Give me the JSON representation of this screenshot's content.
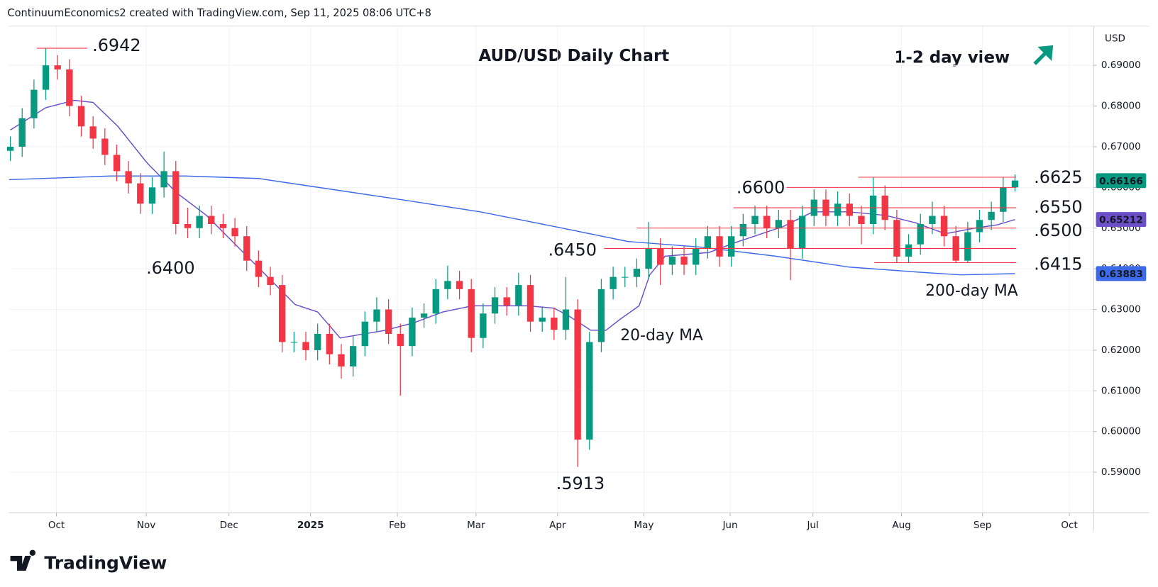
{
  "header": {
    "text": "ContinuumEconomics2 created with TradingView.com, Sep 11, 2025 08:06 UTC+8"
  },
  "footer": {
    "brand": "TradingView"
  },
  "chart_data": {
    "type": "candlestick",
    "title": "AUD/USD Daily Chart",
    "subtitle": "1-2 day view",
    "y_axis_label": "USD",
    "up_color": "#089981",
    "down_color": "#f23645",
    "open": [
      0.669,
      0.67,
      0.677,
      0.684,
      0.69,
      0.689,
      0.68,
      0.675,
      0.672,
      0.668,
      0.664,
      0.661,
      0.656,
      0.66,
      0.664,
      0.651,
      0.65,
      0.653,
      0.651,
      0.65,
      0.648,
      0.642,
      0.638,
      0.636,
      0.622,
      0.622,
      0.62,
      0.624,
      0.619,
      0.616,
      0.621,
      0.627,
      0.63,
      0.624,
      0.621,
      0.628,
      0.629,
      0.635,
      0.637,
      0.635,
      0.623,
      0.629,
      0.633,
      0.631,
      0.636,
      0.627,
      0.628,
      0.625,
      0.63,
      0.598,
      0.622,
      0.635,
      0.638,
      0.638,
      0.64,
      0.645,
      0.641,
      0.643,
      0.641,
      0.645,
      0.648,
      0.643,
      0.648,
      0.651,
      0.653,
      0.65,
      0.652,
      0.645,
      0.653,
      0.657,
      0.653,
      0.656,
      0.653,
      0.651,
      0.658,
      0.652,
      0.643,
      0.646,
      0.651,
      0.653,
      0.648,
      0.642,
      0.649,
      0.652,
      0.654,
      0.66
    ],
    "high": [
      0.6725,
      0.6795,
      0.6865,
      0.6942,
      0.6925,
      0.6915,
      0.6825,
      0.6775,
      0.6745,
      0.6705,
      0.6665,
      0.6635,
      0.6625,
      0.6688,
      0.6665,
      0.655,
      0.6555,
      0.6555,
      0.6535,
      0.6525,
      0.6505,
      0.6445,
      0.6405,
      0.6385,
      0.6245,
      0.6245,
      0.6265,
      0.6265,
      0.6215,
      0.6235,
      0.6295,
      0.633,
      0.6325,
      0.6265,
      0.6305,
      0.6315,
      0.6375,
      0.6408,
      0.6395,
      0.6375,
      0.6315,
      0.6355,
      0.6355,
      0.639,
      0.6385,
      0.6305,
      0.6305,
      0.638,
      0.6325,
      0.6245,
      0.6375,
      0.6405,
      0.6405,
      0.6425,
      0.6515,
      0.6475,
      0.6455,
      0.6455,
      0.6475,
      0.6505,
      0.6505,
      0.6505,
      0.6535,
      0.6555,
      0.6555,
      0.6545,
      0.6545,
      0.6555,
      0.6595,
      0.6595,
      0.659,
      0.6585,
      0.6555,
      0.6625,
      0.6605,
      0.6545,
      0.6485,
      0.6535,
      0.6565,
      0.6555,
      0.6505,
      0.6515,
      0.6545,
      0.6565,
      0.6625,
      0.6632
    ],
    "low": [
      0.6665,
      0.6675,
      0.6745,
      0.6815,
      0.6865,
      0.6775,
      0.6725,
      0.6695,
      0.6655,
      0.6615,
      0.6585,
      0.6535,
      0.6535,
      0.6575,
      0.6485,
      0.6475,
      0.6475,
      0.6485,
      0.6475,
      0.6455,
      0.6395,
      0.6355,
      0.6335,
      0.6195,
      0.6195,
      0.6175,
      0.6175,
      0.6165,
      0.613,
      0.6135,
      0.6185,
      0.6245,
      0.6215,
      0.6088,
      0.6185,
      0.6255,
      0.6265,
      0.6325,
      0.6325,
      0.6195,
      0.6205,
      0.6265,
      0.6285,
      0.6285,
      0.6245,
      0.6245,
      0.6225,
      0.6225,
      0.5913,
      0.5955,
      0.6195,
      0.6325,
      0.6355,
      0.6355,
      0.6375,
      0.636,
      0.6385,
      0.6385,
      0.6385,
      0.6425,
      0.6405,
      0.6405,
      0.6455,
      0.6485,
      0.6475,
      0.6475,
      0.6372,
      0.6425,
      0.6505,
      0.6505,
      0.6505,
      0.6505,
      0.646,
      0.6485,
      0.6495,
      0.6415,
      0.6415,
      0.6435,
      0.6485,
      0.6455,
      0.6415,
      0.6415,
      0.6465,
      0.6495,
      0.6515,
      0.659
    ],
    "close": [
      0.67,
      0.677,
      0.684,
      0.69,
      0.689,
      0.68,
      0.675,
      0.672,
      0.668,
      0.664,
      0.661,
      0.656,
      0.66,
      0.664,
      0.651,
      0.65,
      0.653,
      0.651,
      0.65,
      0.648,
      0.642,
      0.638,
      0.636,
      0.622,
      0.622,
      0.62,
      0.624,
      0.619,
      0.616,
      0.621,
      0.627,
      0.63,
      0.624,
      0.621,
      0.628,
      0.629,
      0.635,
      0.637,
      0.635,
      0.623,
      0.629,
      0.633,
      0.631,
      0.636,
      0.627,
      0.628,
      0.625,
      0.63,
      0.598,
      0.622,
      0.635,
      0.638,
      0.638,
      0.64,
      0.645,
      0.641,
      0.643,
      0.641,
      0.645,
      0.648,
      0.643,
      0.648,
      0.651,
      0.653,
      0.65,
      0.652,
      0.645,
      0.653,
      0.657,
      0.653,
      0.656,
      0.653,
      0.651,
      0.658,
      0.652,
      0.643,
      0.646,
      0.651,
      0.653,
      0.648,
      0.642,
      0.649,
      0.652,
      0.654,
      0.66,
      0.6617
    ],
    "series": [
      {
        "name": "20-day MA",
        "color": "#6c4fc9",
        "x": [
          0,
          3,
          5.4,
          7,
          9.1,
          11.6,
          14.1,
          16.6,
          19.1,
          21.6,
          24.1,
          26,
          27.9,
          29.7,
          31.6,
          34.1,
          36.6,
          39.1,
          43.8,
          46,
          47.2,
          49.1,
          50.4,
          51.6,
          53.2,
          54.1,
          55.4,
          59.1,
          61.6,
          65.4,
          67.9,
          71,
          74.1,
          76.6,
          79.1,
          81.6,
          83.5,
          85
        ],
        "values": [
          0.6741,
          0.6796,
          0.6814,
          0.6809,
          0.675,
          0.6659,
          0.6586,
          0.6531,
          0.6458,
          0.6385,
          0.6312,
          0.6294,
          0.623,
          0.6239,
          0.6248,
          0.6267,
          0.6294,
          0.6309,
          0.6309,
          0.6303,
          0.6285,
          0.6249,
          0.6249,
          0.6276,
          0.6309,
          0.6385,
          0.6431,
          0.644,
          0.6467,
          0.6504,
          0.654,
          0.654,
          0.6531,
          0.6513,
          0.6486,
          0.65,
          0.6508,
          0.6521
        ]
      },
      {
        "name": "200-day MA",
        "color": "#3d6ae8",
        "x": [
          -0.1,
          8.5,
          14.75,
          21,
          27.25,
          33.5,
          39.75,
          46,
          52.25,
          58.5,
          64.75,
          71,
          77.25,
          80.4,
          85
        ],
        "values": [
          0.6619,
          0.6628,
          0.6628,
          0.6622,
          0.6595,
          0.6568,
          0.654,
          0.6504,
          0.6467,
          0.6453,
          0.6431,
          0.6404,
          0.6391,
          0.6385,
          0.6388
        ]
      }
    ],
    "levels": [
      {
        "label": ".6942",
        "value": 0.6942
      },
      {
        "label": ".6625",
        "value": 0.6625
      },
      {
        "label": ".6600",
        "value": 0.66
      },
      {
        "label": ".6550",
        "value": 0.655
      },
      {
        "label": ".6500",
        "value": 0.65
      },
      {
        "label": ".6450",
        "value": 0.645
      },
      {
        "label": ".6415",
        "value": 0.6415
      },
      {
        "label": ".6400",
        "value": 0.64
      },
      {
        "label": ".5913",
        "value": 0.5913
      }
    ],
    "level_color": "#f23645",
    "price_tags": [
      {
        "value": 0.66166,
        "color": "#089981"
      },
      {
        "value": 0.65212,
        "color": "#6c4fc9"
      },
      {
        "value": 0.63883,
        "color": "#3d6ae8"
      }
    ],
    "xlim": [
      -0.125,
      91.6
    ],
    "xticks": [
      {
        "value": 3.9,
        "label": "Oct"
      },
      {
        "value": 11.5,
        "label": "Nov"
      },
      {
        "value": 18.5,
        "label": "Dec"
      },
      {
        "value": 25.4,
        "label": "2025"
      },
      {
        "value": 32.75,
        "label": "Feb"
      },
      {
        "value": 39.4,
        "label": "Mar"
      },
      {
        "value": 46.3,
        "label": "Apr"
      },
      {
        "value": 53.6,
        "label": "May"
      },
      {
        "value": 60.9,
        "label": "Jun"
      },
      {
        "value": 67.9,
        "label": "Jul"
      },
      {
        "value": 75.4,
        "label": "Aug"
      },
      {
        "value": 82.25,
        "label": "Sep"
      },
      {
        "value": 89.6,
        "label": "Oct"
      }
    ],
    "ylim": [
      0.58005,
      0.69967
    ],
    "yticks": [
      {
        "value": 0.59,
        "label": "0.59000"
      },
      {
        "value": 0.6,
        "label": "0.60000"
      },
      {
        "value": 0.61,
        "label": "0.61000"
      },
      {
        "value": 0.62,
        "label": "0.62000"
      },
      {
        "value": 0.63,
        "label": "0.63000"
      },
      {
        "value": 0.64,
        "label": "0.64000"
      },
      {
        "value": 0.65,
        "label": "0.65000"
      },
      {
        "value": 0.66,
        "label": "0.66000"
      },
      {
        "value": 0.67,
        "label": "0.67000"
      },
      {
        "value": 0.68,
        "label": "0.68000"
      },
      {
        "value": 0.69,
        "label": "0.69000"
      }
    ],
    "grid": true
  }
}
